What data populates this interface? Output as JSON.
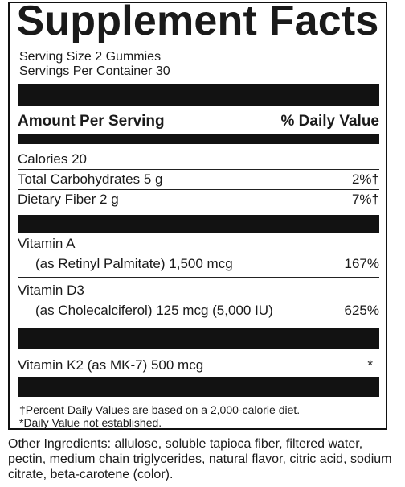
{
  "label": {
    "title": "Supplement Facts",
    "serving_size": "Serving Size 2 Gummies",
    "servings_per_container": "Servings Per Container 30",
    "header_left": "Amount Per Serving",
    "header_right": "% Daily Value",
    "rows": [
      {
        "name": "Calories 20",
        "value": ""
      },
      {
        "name": "Total Carbohydrates 5 g",
        "value": "2%†"
      },
      {
        "name": "Dietary Fiber 2 g",
        "value": "7%†"
      }
    ],
    "vitamin_a": {
      "name": "Vitamin A",
      "detail": "(as Retinyl Palmitate) 1,500 mcg",
      "value": "167%"
    },
    "vitamin_d3": {
      "name": "Vitamin D3",
      "detail": "(as Cholecalciferol) 125 mcg (5,000 IU)",
      "value": "625%"
    },
    "vitamin_k2": {
      "name": "Vitamin K2 (as MK-7) 500 mcg",
      "value": "*"
    },
    "footnotes": [
      "†Percent Daily Values are based on a 2,000-calorie diet.",
      "*Daily Value not established."
    ]
  },
  "other_ingredients": "Other Ingredients: allulose, soluble tapioca fiber, filtered water, pectin, medium chain triglycerides, natural flavor, citric acid, sodium citrate, beta-carotene (color)."
}
